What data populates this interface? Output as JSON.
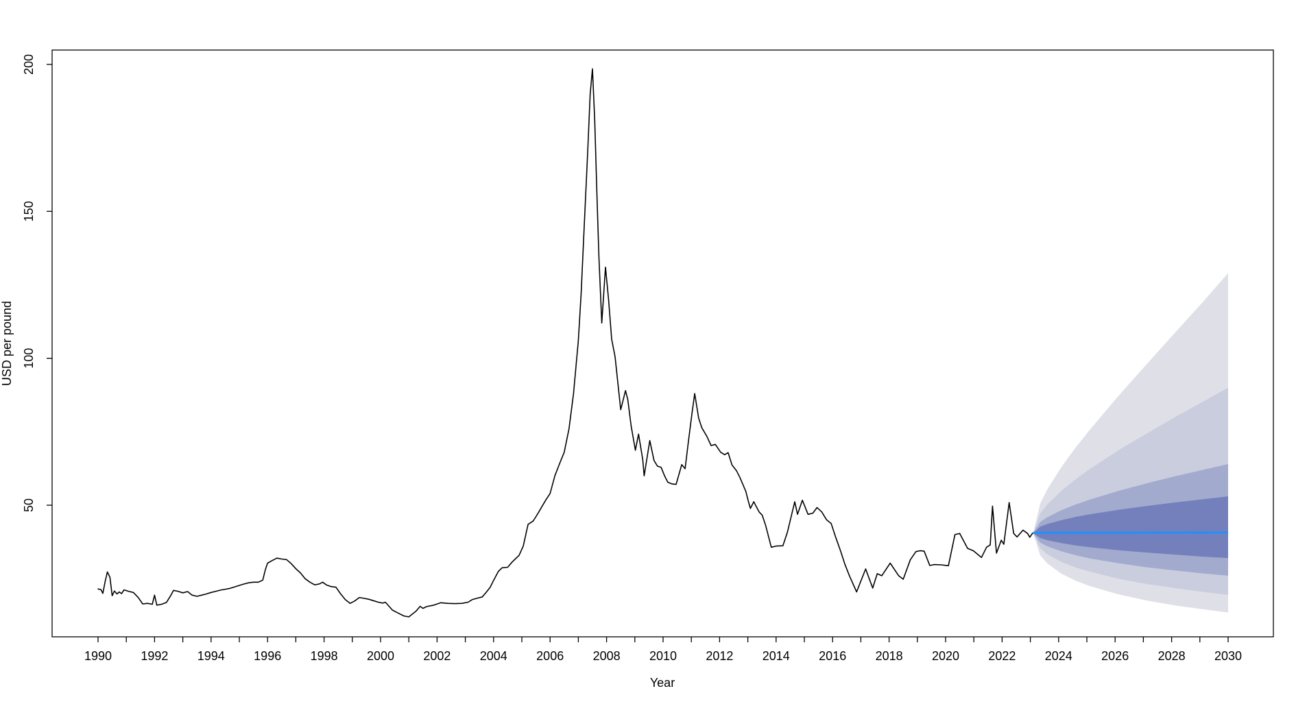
{
  "chart_data": {
    "type": "line",
    "title": "",
    "xlabel": "Year",
    "ylabel": "USD per pound",
    "grid": false,
    "legend": "none",
    "x_range_years": [
      1988.4,
      2031.8
    ],
    "ylim": [
      5,
      205
    ],
    "y_ticks": [
      50,
      100,
      150,
      200
    ],
    "x_minor_tick_years": [
      1990,
      2030
    ],
    "x_tick_labels": [
      1990,
      1992,
      1994,
      1996,
      1998,
      2000,
      2002,
      2004,
      2006,
      2008,
      2010,
      2012,
      2014,
      2016,
      2018,
      2020,
      2022,
      2024,
      2026,
      2028,
      2030
    ],
    "colors": {
      "historical_line": "#000000",
      "median_line": "#1e90ff",
      "axis": "#000000",
      "band_inner": "#7480bb",
      "band_mid": "#a2aace",
      "band_light": "#cacdde",
      "band_outer": "#dfe0e7"
    },
    "series": [
      {
        "name": "historical",
        "color": "#000000",
        "points": [
          [
            1990.0,
            21.5
          ],
          [
            1990.1,
            21.3
          ],
          [
            1990.17,
            20.0
          ],
          [
            1990.25,
            24.0
          ],
          [
            1990.33,
            27.3
          ],
          [
            1990.42,
            25.5
          ],
          [
            1990.5,
            19.2
          ],
          [
            1990.58,
            20.8
          ],
          [
            1990.67,
            19.8
          ],
          [
            1990.75,
            20.5
          ],
          [
            1990.83,
            19.9
          ],
          [
            1990.92,
            21.2
          ],
          [
            1991.08,
            20.7
          ],
          [
            1991.25,
            20.3
          ],
          [
            1991.42,
            18.6
          ],
          [
            1991.58,
            16.4
          ],
          [
            1991.75,
            16.6
          ],
          [
            1991.92,
            16.3
          ],
          [
            1992.0,
            19.4
          ],
          [
            1992.08,
            16.0
          ],
          [
            1992.25,
            16.3
          ],
          [
            1992.42,
            16.9
          ],
          [
            1992.58,
            19.4
          ],
          [
            1992.67,
            21.0
          ],
          [
            1992.83,
            20.7
          ],
          [
            1993.0,
            20.2
          ],
          [
            1993.17,
            20.6
          ],
          [
            1993.33,
            19.4
          ],
          [
            1993.5,
            19.0
          ],
          [
            1993.67,
            19.4
          ],
          [
            1993.83,
            19.8
          ],
          [
            1994.0,
            20.3
          ],
          [
            1994.17,
            20.7
          ],
          [
            1994.33,
            21.1
          ],
          [
            1994.5,
            21.4
          ],
          [
            1994.67,
            21.7
          ],
          [
            1994.83,
            22.2
          ],
          [
            1995.0,
            22.7
          ],
          [
            1995.17,
            23.2
          ],
          [
            1995.33,
            23.6
          ],
          [
            1995.5,
            23.8
          ],
          [
            1995.67,
            23.8
          ],
          [
            1995.83,
            24.5
          ],
          [
            1995.92,
            28.0
          ],
          [
            1996.0,
            30.3
          ],
          [
            1996.17,
            31.2
          ],
          [
            1996.33,
            32.0
          ],
          [
            1996.5,
            31.7
          ],
          [
            1996.67,
            31.5
          ],
          [
            1996.83,
            30.2
          ],
          [
            1997.0,
            28.4
          ],
          [
            1997.17,
            26.9
          ],
          [
            1997.33,
            25.0
          ],
          [
            1997.5,
            23.8
          ],
          [
            1997.67,
            22.9
          ],
          [
            1997.83,
            23.2
          ],
          [
            1997.95,
            23.8
          ],
          [
            1998.08,
            22.9
          ],
          [
            1998.25,
            22.3
          ],
          [
            1998.42,
            22.1
          ],
          [
            1998.58,
            19.9
          ],
          [
            1998.75,
            17.9
          ],
          [
            1998.92,
            16.6
          ],
          [
            1999.08,
            17.4
          ],
          [
            1999.25,
            18.6
          ],
          [
            1999.42,
            18.3
          ],
          [
            1999.58,
            18.0
          ],
          [
            1999.75,
            17.5
          ],
          [
            1999.92,
            17.0
          ],
          [
            2000.08,
            16.7
          ],
          [
            2000.17,
            17.0
          ],
          [
            2000.42,
            14.3
          ],
          [
            2000.62,
            13.3
          ],
          [
            2000.83,
            12.3
          ],
          [
            2001.0,
            12.0
          ],
          [
            2001.25,
            13.9
          ],
          [
            2001.4,
            15.6
          ],
          [
            2001.5,
            14.9
          ],
          [
            2001.63,
            15.5
          ],
          [
            2001.88,
            16.0
          ],
          [
            2002.13,
            16.8
          ],
          [
            2002.38,
            16.6
          ],
          [
            2002.63,
            16.5
          ],
          [
            2002.88,
            16.6
          ],
          [
            2003.1,
            17.0
          ],
          [
            2003.25,
            17.9
          ],
          [
            2003.4,
            18.3
          ],
          [
            2003.6,
            18.8
          ],
          [
            2003.75,
            20.5
          ],
          [
            2003.88,
            22.1
          ],
          [
            2004.0,
            24.4
          ],
          [
            2004.17,
            27.5
          ],
          [
            2004.3,
            28.7
          ],
          [
            2004.5,
            28.9
          ],
          [
            2004.65,
            30.6
          ],
          [
            2004.78,
            31.8
          ],
          [
            2004.9,
            32.9
          ],
          [
            2005.05,
            36.1
          ],
          [
            2005.22,
            43.5
          ],
          [
            2005.4,
            44.6
          ],
          [
            2005.48,
            45.8
          ],
          [
            2005.6,
            47.7
          ],
          [
            2005.72,
            49.7
          ],
          [
            2005.85,
            51.8
          ],
          [
            2006.0,
            54.0
          ],
          [
            2006.17,
            60.0
          ],
          [
            2006.33,
            64.0
          ],
          [
            2006.5,
            68.0
          ],
          [
            2006.67,
            76.0
          ],
          [
            2006.83,
            88.0
          ],
          [
            2007.0,
            106.0
          ],
          [
            2007.1,
            122.0
          ],
          [
            2007.2,
            143.0
          ],
          [
            2007.33,
            170.0
          ],
          [
            2007.42,
            190.0
          ],
          [
            2007.5,
            198.5
          ],
          [
            2007.58,
            181.0
          ],
          [
            2007.67,
            152.0
          ],
          [
            2007.73,
            134.0
          ],
          [
            2007.83,
            112.0
          ],
          [
            2007.96,
            131.0
          ],
          [
            2008.07,
            120.0
          ],
          [
            2008.18,
            106.5
          ],
          [
            2008.3,
            100.5
          ],
          [
            2008.4,
            91.5
          ],
          [
            2008.5,
            82.5
          ],
          [
            2008.67,
            89.0
          ],
          [
            2008.75,
            86.0
          ],
          [
            2008.87,
            77.0
          ],
          [
            2009.02,
            68.7
          ],
          [
            2009.13,
            74.2
          ],
          [
            2009.28,
            65.6
          ],
          [
            2009.33,
            60.0
          ],
          [
            2009.53,
            72.0
          ],
          [
            2009.68,
            65.2
          ],
          [
            2009.8,
            63.3
          ],
          [
            2009.93,
            62.9
          ],
          [
            2010.05,
            60.0
          ],
          [
            2010.17,
            57.8
          ],
          [
            2010.33,
            57.2
          ],
          [
            2010.46,
            57.1
          ],
          [
            2010.66,
            63.8
          ],
          [
            2010.78,
            62.4
          ],
          [
            2010.9,
            72.0
          ],
          [
            2011.02,
            81.0
          ],
          [
            2011.12,
            88.0
          ],
          [
            2011.26,
            79.6
          ],
          [
            2011.37,
            76.4
          ],
          [
            2011.55,
            73.4
          ],
          [
            2011.7,
            70.3
          ],
          [
            2011.85,
            70.7
          ],
          [
            2012.04,
            68.0
          ],
          [
            2012.18,
            67.2
          ],
          [
            2012.3,
            67.9
          ],
          [
            2012.44,
            63.7
          ],
          [
            2012.6,
            61.7
          ],
          [
            2012.72,
            59.4
          ],
          [
            2012.93,
            54.7
          ],
          [
            2013.01,
            51.6
          ],
          [
            2013.09,
            48.9
          ],
          [
            2013.21,
            51.2
          ],
          [
            2013.29,
            49.7
          ],
          [
            2013.4,
            47.7
          ],
          [
            2013.51,
            46.6
          ],
          [
            2013.63,
            43.1
          ],
          [
            2013.83,
            35.7
          ],
          [
            2014.0,
            36.1
          ],
          [
            2014.24,
            36.2
          ],
          [
            2014.4,
            40.8
          ],
          [
            2014.66,
            51.2
          ],
          [
            2014.76,
            46.9
          ],
          [
            2014.93,
            51.7
          ],
          [
            2015.13,
            46.9
          ],
          [
            2015.3,
            47.3
          ],
          [
            2015.45,
            49.2
          ],
          [
            2015.62,
            47.7
          ],
          [
            2015.79,
            45.0
          ],
          [
            2015.95,
            43.8
          ],
          [
            2016.11,
            39.1
          ],
          [
            2016.28,
            34.5
          ],
          [
            2016.44,
            29.8
          ],
          [
            2016.6,
            25.9
          ],
          [
            2016.85,
            20.5
          ],
          [
            2017.01,
            24.4
          ],
          [
            2017.17,
            28.3
          ],
          [
            2017.42,
            21.8
          ],
          [
            2017.58,
            26.7
          ],
          [
            2017.74,
            26.0
          ],
          [
            2018.04,
            30.3
          ],
          [
            2018.34,
            26.0
          ],
          [
            2018.5,
            24.8
          ],
          [
            2018.75,
            31.4
          ],
          [
            2018.95,
            34.2
          ],
          [
            2019.1,
            34.5
          ],
          [
            2019.24,
            34.4
          ],
          [
            2019.44,
            29.5
          ],
          [
            2019.6,
            29.8
          ],
          [
            2019.85,
            29.7
          ],
          [
            2020.1,
            29.4
          ],
          [
            2020.33,
            40.0
          ],
          [
            2020.5,
            40.4
          ],
          [
            2020.78,
            35.3
          ],
          [
            2020.98,
            34.5
          ],
          [
            2021.27,
            32.2
          ],
          [
            2021.45,
            35.7
          ],
          [
            2021.58,
            36.5
          ],
          [
            2021.66,
            49.7
          ],
          [
            2021.8,
            33.7
          ],
          [
            2021.97,
            38.1
          ],
          [
            2022.06,
            36.7
          ],
          [
            2022.25,
            50.9
          ],
          [
            2022.41,
            40.4
          ],
          [
            2022.53,
            39.2
          ],
          [
            2022.74,
            41.5
          ],
          [
            2022.9,
            40.4
          ],
          [
            2022.98,
            39.1
          ],
          [
            2023.08,
            40.5
          ]
        ]
      }
    ],
    "forecast_fan": {
      "start_year": 2023.1,
      "end_year": 2030.0,
      "median_value": 40.6,
      "median_points": [
        [
          2023.1,
          40.6
        ],
        [
          2030.0,
          40.7
        ]
      ],
      "h_offsets": [
        0,
        0.25,
        0.5,
        1,
        1.5,
        2,
        3,
        4,
        5,
        6,
        6.9
      ],
      "bands": [
        {
          "name": "outer",
          "color": "#dfe0e7",
          "upper": [
            40.5,
            50.6,
            55.4,
            63.0,
            69.6,
            75.6,
            87.0,
            97.8,
            108.5,
            119.1,
            129.0
          ],
          "lower": [
            40.5,
            32.9,
            30.2,
            26.7,
            24.3,
            22.5,
            19.7,
            17.6,
            15.9,
            14.6,
            13.5
          ]
        },
        {
          "name": "light",
          "color": "#cacdde",
          "upper": [
            40.5,
            47.2,
            50.3,
            54.9,
            58.8,
            62.3,
            68.6,
            74.3,
            79.9,
            85.2,
            90.0
          ],
          "lower": [
            40.5,
            35.3,
            33.3,
            30.7,
            28.8,
            27.4,
            25.0,
            23.2,
            21.8,
            20.5,
            19.5
          ]
        },
        {
          "name": "mid",
          "color": "#a2aace",
          "upper": [
            40.5,
            44.3,
            45.9,
            48.3,
            50.2,
            51.9,
            54.8,
            57.4,
            59.8,
            62.0,
            64.0
          ],
          "lower": [
            40.5,
            37.3,
            36.0,
            34.3,
            33.0,
            31.9,
            30.3,
            28.9,
            27.8,
            26.8,
            26.0
          ]
        },
        {
          "name": "inner",
          "color": "#7480bb",
          "upper": [
            40.5,
            42.7,
            43.6,
            44.9,
            46.0,
            46.9,
            48.4,
            49.7,
            50.9,
            52.0,
            53.0
          ],
          "lower": [
            40.5,
            38.8,
            38.1,
            37.1,
            36.3,
            35.7,
            34.7,
            33.9,
            33.2,
            32.5,
            32.0
          ]
        }
      ]
    }
  }
}
